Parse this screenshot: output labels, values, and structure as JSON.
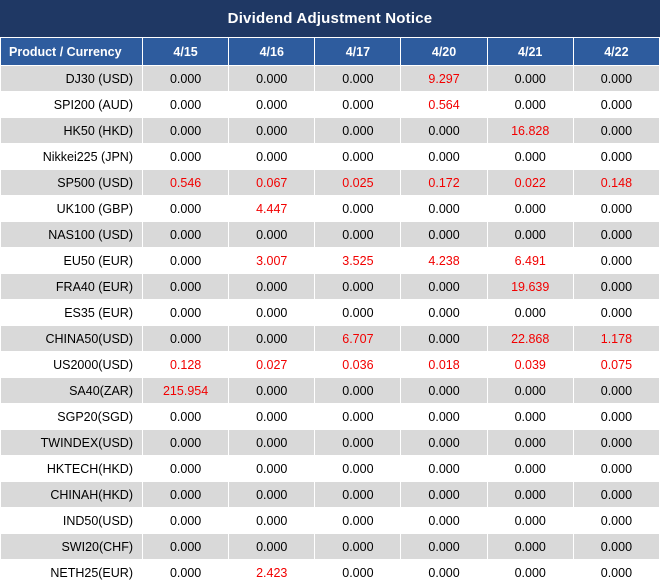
{
  "title": "Dividend Adjustment Notice",
  "colors": {
    "title_bar_bg": "#1F3864",
    "header_bg": "#2E5C9E",
    "row_alt_bg": "#D9D9D9",
    "row_bg": "#FFFFFF",
    "value_red": "#F20000"
  },
  "table": {
    "product_header": "Product / Currency",
    "date_headers": [
      "4/15",
      "4/16",
      "4/17",
      "4/20",
      "4/21",
      "4/22"
    ],
    "rows": [
      {
        "product": "DJ30 (USD)",
        "values": [
          "0.000",
          "0.000",
          "0.000",
          "9.297",
          "0.000",
          "0.000"
        ],
        "red": [
          false,
          false,
          false,
          true,
          false,
          false
        ]
      },
      {
        "product": "SPI200 (AUD)",
        "values": [
          "0.000",
          "0.000",
          "0.000",
          "0.564",
          "0.000",
          "0.000"
        ],
        "red": [
          false,
          false,
          false,
          true,
          false,
          false
        ]
      },
      {
        "product": "HK50 (HKD)",
        "values": [
          "0.000",
          "0.000",
          "0.000",
          "0.000",
          "16.828",
          "0.000"
        ],
        "red": [
          false,
          false,
          false,
          false,
          true,
          false
        ]
      },
      {
        "product": "Nikkei225 (JPN)",
        "values": [
          "0.000",
          "0.000",
          "0.000",
          "0.000",
          "0.000",
          "0.000"
        ],
        "red": [
          false,
          false,
          false,
          false,
          false,
          false
        ]
      },
      {
        "product": "SP500 (USD)",
        "values": [
          "0.546",
          "0.067",
          "0.025",
          "0.172",
          "0.022",
          "0.148"
        ],
        "red": [
          true,
          true,
          true,
          true,
          true,
          true
        ]
      },
      {
        "product": "UK100 (GBP)",
        "values": [
          "0.000",
          "4.447",
          "0.000",
          "0.000",
          "0.000",
          "0.000"
        ],
        "red": [
          false,
          true,
          false,
          false,
          false,
          false
        ]
      },
      {
        "product": "NAS100 (USD)",
        "values": [
          "0.000",
          "0.000",
          "0.000",
          "0.000",
          "0.000",
          "0.000"
        ],
        "red": [
          false,
          false,
          false,
          false,
          false,
          false
        ]
      },
      {
        "product": "EU50 (EUR)",
        "values": [
          "0.000",
          "3.007",
          "3.525",
          "4.238",
          "6.491",
          "0.000"
        ],
        "red": [
          false,
          true,
          true,
          true,
          true,
          false
        ]
      },
      {
        "product": "FRA40 (EUR)",
        "values": [
          "0.000",
          "0.000",
          "0.000",
          "0.000",
          "19.639",
          "0.000"
        ],
        "red": [
          false,
          false,
          false,
          false,
          true,
          false
        ]
      },
      {
        "product": "ES35 (EUR)",
        "values": [
          "0.000",
          "0.000",
          "0.000",
          "0.000",
          "0.000",
          "0.000"
        ],
        "red": [
          false,
          false,
          false,
          false,
          false,
          false
        ]
      },
      {
        "product": "CHINA50(USD)",
        "values": [
          "0.000",
          "0.000",
          "6.707",
          "0.000",
          "22.868",
          "1.178"
        ],
        "red": [
          false,
          false,
          true,
          false,
          true,
          true
        ]
      },
      {
        "product": "US2000(USD)",
        "values": [
          "0.128",
          "0.027",
          "0.036",
          "0.018",
          "0.039",
          "0.075"
        ],
        "red": [
          true,
          true,
          true,
          true,
          true,
          true
        ]
      },
      {
        "product": "SA40(ZAR)",
        "values": [
          "215.954",
          "0.000",
          "0.000",
          "0.000",
          "0.000",
          "0.000"
        ],
        "red": [
          true,
          false,
          false,
          false,
          false,
          false
        ]
      },
      {
        "product": "SGP20(SGD)",
        "values": [
          "0.000",
          "0.000",
          "0.000",
          "0.000",
          "0.000",
          "0.000"
        ],
        "red": [
          false,
          false,
          false,
          false,
          false,
          false
        ]
      },
      {
        "product": "TWINDEX(USD)",
        "values": [
          "0.000",
          "0.000",
          "0.000",
          "0.000",
          "0.000",
          "0.000"
        ],
        "red": [
          false,
          false,
          false,
          false,
          false,
          false
        ]
      },
      {
        "product": "HKTECH(HKD)",
        "values": [
          "0.000",
          "0.000",
          "0.000",
          "0.000",
          "0.000",
          "0.000"
        ],
        "red": [
          false,
          false,
          false,
          false,
          false,
          false
        ]
      },
      {
        "product": "CHINAH(HKD)",
        "values": [
          "0.000",
          "0.000",
          "0.000",
          "0.000",
          "0.000",
          "0.000"
        ],
        "red": [
          false,
          false,
          false,
          false,
          false,
          false
        ]
      },
      {
        "product": "IND50(USD)",
        "values": [
          "0.000",
          "0.000",
          "0.000",
          "0.000",
          "0.000",
          "0.000"
        ],
        "red": [
          false,
          false,
          false,
          false,
          false,
          false
        ]
      },
      {
        "product": "SWI20(CHF)",
        "values": [
          "0.000",
          "0.000",
          "0.000",
          "0.000",
          "0.000",
          "0.000"
        ],
        "red": [
          false,
          false,
          false,
          false,
          false,
          false
        ]
      },
      {
        "product": "NETH25(EUR)",
        "values": [
          "0.000",
          "2.423",
          "0.000",
          "0.000",
          "0.000",
          "0.000"
        ],
        "red": [
          false,
          true,
          false,
          false,
          false,
          false
        ]
      }
    ]
  }
}
